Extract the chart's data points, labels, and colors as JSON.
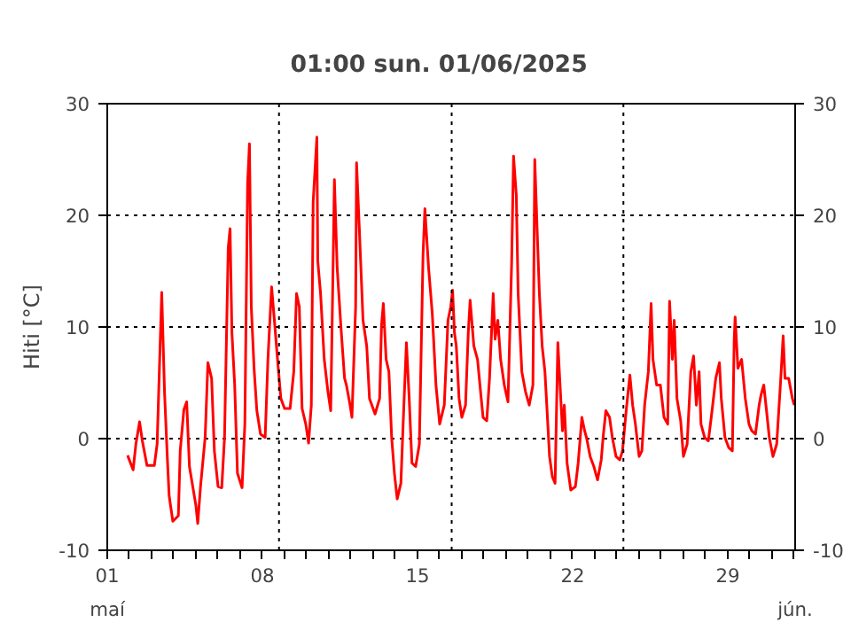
{
  "chart_data": {
    "type": "line",
    "title": "01:00   sun.  01/06/2025",
    "ylabel": "Hiti [°C]",
    "xlim": [
      "2025-05-01",
      "2025-06-01T01:00"
    ],
    "xticks": [
      {
        "value": "2025-05-01",
        "label": "01"
      },
      {
        "value": "2025-05-02",
        "label": null
      },
      {
        "value": "2025-05-03",
        "label": null
      },
      {
        "value": "2025-05-04",
        "label": null
      },
      {
        "value": "2025-05-05",
        "label": null
      },
      {
        "value": "2025-05-06",
        "label": null
      },
      {
        "value": "2025-05-07",
        "label": null
      },
      {
        "value": "2025-05-08",
        "label": "08"
      },
      {
        "value": "2025-05-09",
        "label": null
      },
      {
        "value": "2025-05-10",
        "label": null
      },
      {
        "value": "2025-05-11",
        "label": null
      },
      {
        "value": "2025-05-12",
        "label": null
      },
      {
        "value": "2025-05-13",
        "label": null
      },
      {
        "value": "2025-05-14",
        "label": null
      },
      {
        "value": "2025-05-15",
        "label": "15"
      },
      {
        "value": "2025-05-16",
        "label": null
      },
      {
        "value": "2025-05-17",
        "label": null
      },
      {
        "value": "2025-05-18",
        "label": null
      },
      {
        "value": "2025-05-19",
        "label": null
      },
      {
        "value": "2025-05-20",
        "label": null
      },
      {
        "value": "2025-05-21",
        "label": null
      },
      {
        "value": "2025-05-22",
        "label": "22"
      },
      {
        "value": "2025-05-23",
        "label": null
      },
      {
        "value": "2025-05-24",
        "label": null
      },
      {
        "value": "2025-05-25",
        "label": null
      },
      {
        "value": "2025-05-26",
        "label": null
      },
      {
        "value": "2025-05-27",
        "label": null
      },
      {
        "value": "2025-05-28",
        "label": null
      },
      {
        "value": "2025-05-29",
        "label": "29"
      },
      {
        "value": "2025-05-30",
        "label": null
      },
      {
        "value": "2025-05-31",
        "label": null
      },
      {
        "value": "2025-06-01",
        "label": null
      }
    ],
    "annotations": [
      "maí",
      "jún."
    ],
    "ylim": [
      -10,
      30
    ],
    "yticks": [
      -10,
      0,
      10,
      20,
      30
    ],
    "y2lim": [
      -10,
      30
    ],
    "y2ticks": [
      -10,
      0,
      10,
      20,
      30
    ],
    "grid": "y",
    "line_style": "solid",
    "ref_lines": [
      {
        "axis": "x",
        "value": "2025-05-08T18:00",
        "line_style": "dotted"
      },
      {
        "axis": "x",
        "value": "2025-05-16T13:00",
        "line_style": "dotted"
      },
      {
        "axis": "x",
        "value": "2025-05-24T07:00",
        "line_style": "dotted"
      }
    ],
    "series": [
      {
        "color": "#ff0000",
        "x": [
          "2025-05-01T22:00",
          "2025-05-02T04:00",
          "2025-05-02T07:00",
          "2025-05-02T11:00",
          "2025-05-02T14:00",
          "2025-05-02T19:00",
          "2025-05-03T03:00",
          "2025-05-03T06:00",
          "2025-05-03T09:00",
          "2025-05-03T11:00",
          "2025-05-03T14:00",
          "2025-05-03T17:00",
          "2025-05-03T19:00",
          "2025-05-03T23:00",
          "2025-05-04T05:00",
          "2025-05-04T07:00",
          "2025-05-04T11:00",
          "2025-05-04T14:00",
          "2025-05-04T17:00",
          "2025-05-05T00:00",
          "2025-05-05T02:00",
          "2025-05-05T05:00",
          "2025-05-05T10:00",
          "2025-05-05T13:00",
          "2025-05-05T17:00",
          "2025-05-05T20:00",
          "2025-05-06T00:00",
          "2025-05-06T04:00",
          "2025-05-06T07:00",
          "2025-05-06T11:00",
          "2025-05-06T13:00",
          "2025-05-06T15:00",
          "2025-05-06T18:00",
          "2025-05-06T21:00",
          "2025-05-07T02:00",
          "2025-05-07T05:00",
          "2025-05-07T08:00",
          "2025-05-07T10:00",
          "2025-05-07T12:00",
          "2025-05-07T15:00",
          "2025-05-07T18:00",
          "2025-05-07T22:00",
          "2025-05-08T03:00",
          "2025-05-08T06:00",
          "2025-05-08T10:00",
          "2025-05-08T13:00",
          "2025-05-08T17:00",
          "2025-05-08T20:00",
          "2025-05-09T00:00",
          "2025-05-09T06:00",
          "2025-05-09T10:00",
          "2025-05-09T13:00",
          "2025-05-09T16:00",
          "2025-05-09T19:00",
          "2025-05-09T23:00",
          "2025-05-10T02:00",
          "2025-05-10T05:00",
          "2025-05-10T07:00",
          "2025-05-10T11:00",
          "2025-05-10T12:00",
          "2025-05-10T15:00",
          "2025-05-10T19:00",
          "2025-05-10T23:00",
          "2025-05-11T02:00",
          "2025-05-11T05:00",
          "2025-05-11T06:00",
          "2025-05-11T09:00",
          "2025-05-11T13:00",
          "2025-05-11T17:00",
          "2025-05-11T19:00",
          "2025-05-11T23:00",
          "2025-05-12T01:00",
          "2025-05-12T05:00",
          "2025-05-12T06:00",
          "2025-05-12T09:00",
          "2025-05-12T13:00",
          "2025-05-12T17:00",
          "2025-05-12T20:00",
          "2025-05-13T02:00",
          "2025-05-13T07:00",
          "2025-05-13T09:00",
          "2025-05-13T11:00",
          "2025-05-13T14:00",
          "2025-05-13T17:00",
          "2025-05-13T20:00",
          "2025-05-13T23:00",
          "2025-05-14T02:00",
          "2025-05-14T06:00",
          "2025-05-14T09:00",
          "2025-05-14T12:00",
          "2025-05-14T15:00",
          "2025-05-14T18:00",
          "2025-05-14T22:00",
          "2025-05-15T02:00",
          "2025-05-15T06:00",
          "2025-05-15T08:00",
          "2025-05-15T12:00",
          "2025-05-15T16:00",
          "2025-05-15T20:00",
          "2025-05-16T00:00",
          "2025-05-16T05:00",
          "2025-05-16T09:00",
          "2025-05-16T12:00",
          "2025-05-16T14:00",
          "2025-05-16T16:00",
          "2025-05-16T18:00",
          "2025-05-16T21:00",
          "2025-05-17T00:00",
          "2025-05-17T04:00",
          "2025-05-17T07:00",
          "2025-05-17T09:00",
          "2025-05-17T13:00",
          "2025-05-17T17:00",
          "2025-05-17T21:00",
          "2025-05-17T23:00",
          "2025-05-18T03:00",
          "2025-05-18T06:00",
          "2025-05-18T10:00",
          "2025-05-18T12:00",
          "2025-05-18T15:00",
          "2025-05-18T18:00",
          "2025-05-18T22:00",
          "2025-05-19T02:00",
          "2025-05-19T06:00",
          "2025-05-19T08:00",
          "2025-05-19T11:00",
          "2025-05-19T13:00",
          "2025-05-19T17:00",
          "2025-05-19T21:00",
          "2025-05-20T01:00",
          "2025-05-20T05:00",
          "2025-05-20T07:00",
          "2025-05-20T10:00",
          "2025-05-20T12:00",
          "2025-05-20T15:00",
          "2025-05-20T18:00",
          "2025-05-20T20:00",
          "2025-05-20T23:00",
          "2025-05-21T02:00",
          "2025-05-21T05:00",
          "2025-05-21T08:00",
          "2025-05-21T10:00",
          "2025-05-21T13:00",
          "2025-05-21T15:00",
          "2025-05-21T18:00",
          "2025-05-21T22:00",
          "2025-05-22T03:00",
          "2025-05-22T06:00",
          "2025-05-22T10:00",
          "2025-05-22T13:00",
          "2025-05-22T15:00",
          "2025-05-22T19:00",
          "2025-05-22T23:00",
          "2025-05-23T03:00",
          "2025-05-23T07:00",
          "2025-05-23T09:00",
          "2025-05-23T12:00",
          "2025-05-23T16:00",
          "2025-05-23T19:00",
          "2025-05-23T23:00",
          "2025-05-24T03:00",
          "2025-05-24T06:00",
          "2025-05-24T10:00",
          "2025-05-24T14:00",
          "2025-05-24T17:00",
          "2025-05-24T20:00",
          "2025-05-25T00:00",
          "2025-05-25T03:00",
          "2025-05-25T06:00",
          "2025-05-25T10:00",
          "2025-05-25T13:00",
          "2025-05-25T15:00",
          "2025-05-25T19:00",
          "2025-05-25T23:00",
          "2025-05-26T03:00",
          "2025-05-26T07:00",
          "2025-05-26T09:00",
          "2025-05-26T12:00",
          "2025-05-26T14:00",
          "2025-05-26T17:00",
          "2025-05-26T21:00",
          "2025-05-27T00:00",
          "2025-05-27T04:00",
          "2025-05-27T08:00",
          "2025-05-27T11:00",
          "2025-05-27T14:00",
          "2025-05-27T17:00",
          "2025-05-27T19:00",
          "2025-05-27T23:00",
          "2025-05-28T03:00",
          "2025-05-28T07:00",
          "2025-05-28T11:00",
          "2025-05-28T15:00",
          "2025-05-28T17:00",
          "2025-05-28T21:00",
          "2025-05-29T01:00",
          "2025-05-29T05:00",
          "2025-05-29T07:00",
          "2025-05-29T08:00",
          "2025-05-29T11:00",
          "2025-05-29T15:00",
          "2025-05-29T19:00",
          "2025-05-29T23:00",
          "2025-05-30T02:00",
          "2025-05-30T06:00",
          "2025-05-30T10:00",
          "2025-05-30T12:00",
          "2025-05-30T15:00",
          "2025-05-30T18:00",
          "2025-05-30T21:00",
          "2025-05-31T01:00",
          "2025-05-31T05:00",
          "2025-05-31T09:00",
          "2025-05-31T12:00",
          "2025-05-31T14:00",
          "2025-05-31T18:00",
          "2025-05-31T22:00",
          "2025-06-01T00:00"
        ],
        "values": [
          -1.5,
          -2.8,
          -0.5,
          1.5,
          -0.2,
          -2.4,
          -2.4,
          -0.5,
          7.7,
          13.1,
          4.2,
          -1.6,
          -5.1,
          -7.4,
          -6.9,
          -1.1,
          2.6,
          3.3,
          -2.5,
          -6.0,
          -7.6,
          -4.3,
          0.1,
          6.8,
          5.4,
          -1.1,
          -4.3,
          -4.4,
          0.1,
          17.1,
          18.8,
          9.5,
          4.8,
          -3.1,
          -4.4,
          1.3,
          22.9,
          26.4,
          11.8,
          6.3,
          2.5,
          0.4,
          0.1,
          7.1,
          13.6,
          10.6,
          6.5,
          3.6,
          2.7,
          2.7,
          6.0,
          13.0,
          11.8,
          2.7,
          1.3,
          -0.4,
          3.0,
          21.2,
          27.0,
          15.9,
          13.0,
          7.1,
          4.2,
          2.5,
          17.7,
          23.2,
          15.3,
          10.1,
          5.4,
          4.8,
          3.0,
          1.9,
          11.8,
          24.7,
          18.8,
          10.6,
          8.3,
          3.6,
          2.2,
          3.6,
          10.1,
          12.1,
          7.1,
          6.0,
          0.1,
          -3.1,
          -5.4,
          -4.0,
          2.5,
          8.6,
          3.6,
          -2.2,
          -2.5,
          -0.5,
          16.5,
          20.6,
          15.3,
          11.2,
          4.8,
          1.3,
          3.0,
          10.6,
          11.8,
          13.3,
          9.5,
          8.3,
          3.6,
          1.9,
          3.0,
          9.5,
          12.4,
          8.3,
          7.1,
          3.6,
          1.9,
          1.6,
          5.4,
          13.0,
          8.9,
          10.6,
          7.1,
          4.8,
          3.3,
          15.9,
          25.3,
          21.8,
          13.0,
          6.0,
          4.2,
          3.0,
          4.8,
          25.0,
          17.7,
          13.0,
          8.3,
          6.0,
          3.0,
          -1.6,
          -3.4,
          -4.0,
          8.6,
          5.4,
          0.7,
          3.0,
          -2.2,
          -4.6,
          -4.3,
          -2.2,
          1.9,
          0.7,
          0.1,
          -1.6,
          -2.5,
          -3.7,
          -1.9,
          0.1,
          2.5,
          1.9,
          0.1,
          -1.6,
          -1.9,
          -1.1,
          2.5,
          5.7,
          3.0,
          1.3,
          -1.6,
          -1.1,
          3.0,
          6.0,
          12.1,
          7.1,
          4.8,
          4.8,
          1.9,
          1.3,
          12.3,
          7.1,
          10.6,
          3.6,
          1.6,
          -1.6,
          -0.5,
          6.0,
          7.4,
          3.0,
          6.0,
          1.3,
          0.1,
          -0.2,
          2.5,
          5.4,
          6.8,
          3.6,
          0.1,
          -0.8,
          -1.1,
          8.9,
          10.9,
          6.3,
          7.1,
          3.6,
          1.3,
          0.7,
          0.4,
          3.0,
          3.9,
          4.8,
          2.5,
          0.1,
          -1.6,
          -0.5,
          4.8,
          9.2,
          5.4,
          5.4,
          3.6,
          3.0
        ]
      }
    ]
  }
}
